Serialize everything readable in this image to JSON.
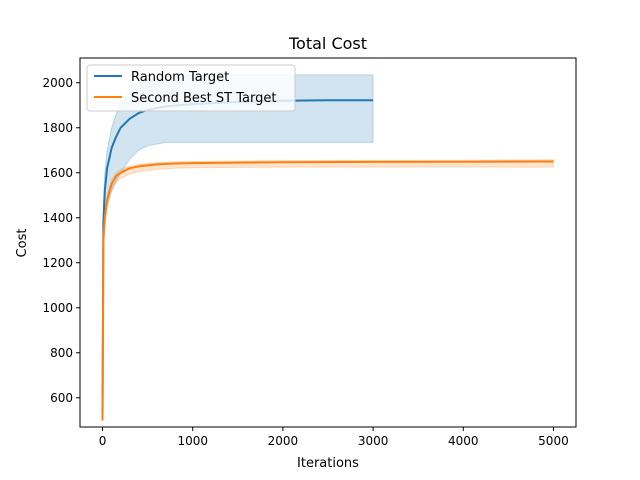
{
  "chart_data": {
    "type": "line",
    "title": "Total Cost",
    "xlabel": "Iterations",
    "ylabel": "Cost",
    "xlim": [
      -250,
      5250
    ],
    "ylim": [
      470,
      2110
    ],
    "xticks": [
      0,
      1000,
      2000,
      3000,
      4000,
      5000
    ],
    "yticks": [
      600,
      800,
      1000,
      1200,
      1400,
      1600,
      1800,
      2000
    ],
    "grid": false,
    "legend_position": "top-left",
    "series": [
      {
        "name": "Random Target",
        "color": "#1f77b4",
        "x": [
          0,
          10,
          25,
          50,
          100,
          150,
          200,
          300,
          400,
          500,
          700,
          1000,
          1500,
          2000,
          2500,
          3000
        ],
        "y": [
          500,
          1380,
          1520,
          1620,
          1710,
          1760,
          1800,
          1840,
          1865,
          1880,
          1895,
          1905,
          1915,
          1920,
          1922,
          1922
        ],
        "lower": [
          500,
          1300,
          1400,
          1460,
          1520,
          1560,
          1600,
          1660,
          1700,
          1720,
          1735,
          1735,
          1735,
          1735,
          1735,
          1735
        ],
        "upper": [
          500,
          1450,
          1600,
          1700,
          1800,
          1860,
          1900,
          1960,
          2000,
          2015,
          2030,
          2035,
          2035,
          2035,
          2035,
          2035
        ]
      },
      {
        "name": "Second Best ST Target",
        "color": "#ff7f0e",
        "x": [
          0,
          10,
          25,
          50,
          100,
          150,
          200,
          300,
          400,
          600,
          800,
          1000,
          1500,
          2000,
          3000,
          4000,
          5000
        ],
        "y": [
          500,
          1300,
          1400,
          1480,
          1550,
          1585,
          1600,
          1620,
          1628,
          1637,
          1641,
          1643,
          1645,
          1647,
          1648,
          1649,
          1650
        ],
        "lower": [
          495,
          1250,
          1360,
          1440,
          1520,
          1560,
          1575,
          1595,
          1605,
          1615,
          1620,
          1622,
          1624,
          1625,
          1625,
          1625,
          1625
        ],
        "upper": [
          505,
          1330,
          1420,
          1500,
          1570,
          1600,
          1615,
          1630,
          1638,
          1645,
          1648,
          1650,
          1652,
          1654,
          1655,
          1656,
          1658
        ]
      }
    ]
  }
}
